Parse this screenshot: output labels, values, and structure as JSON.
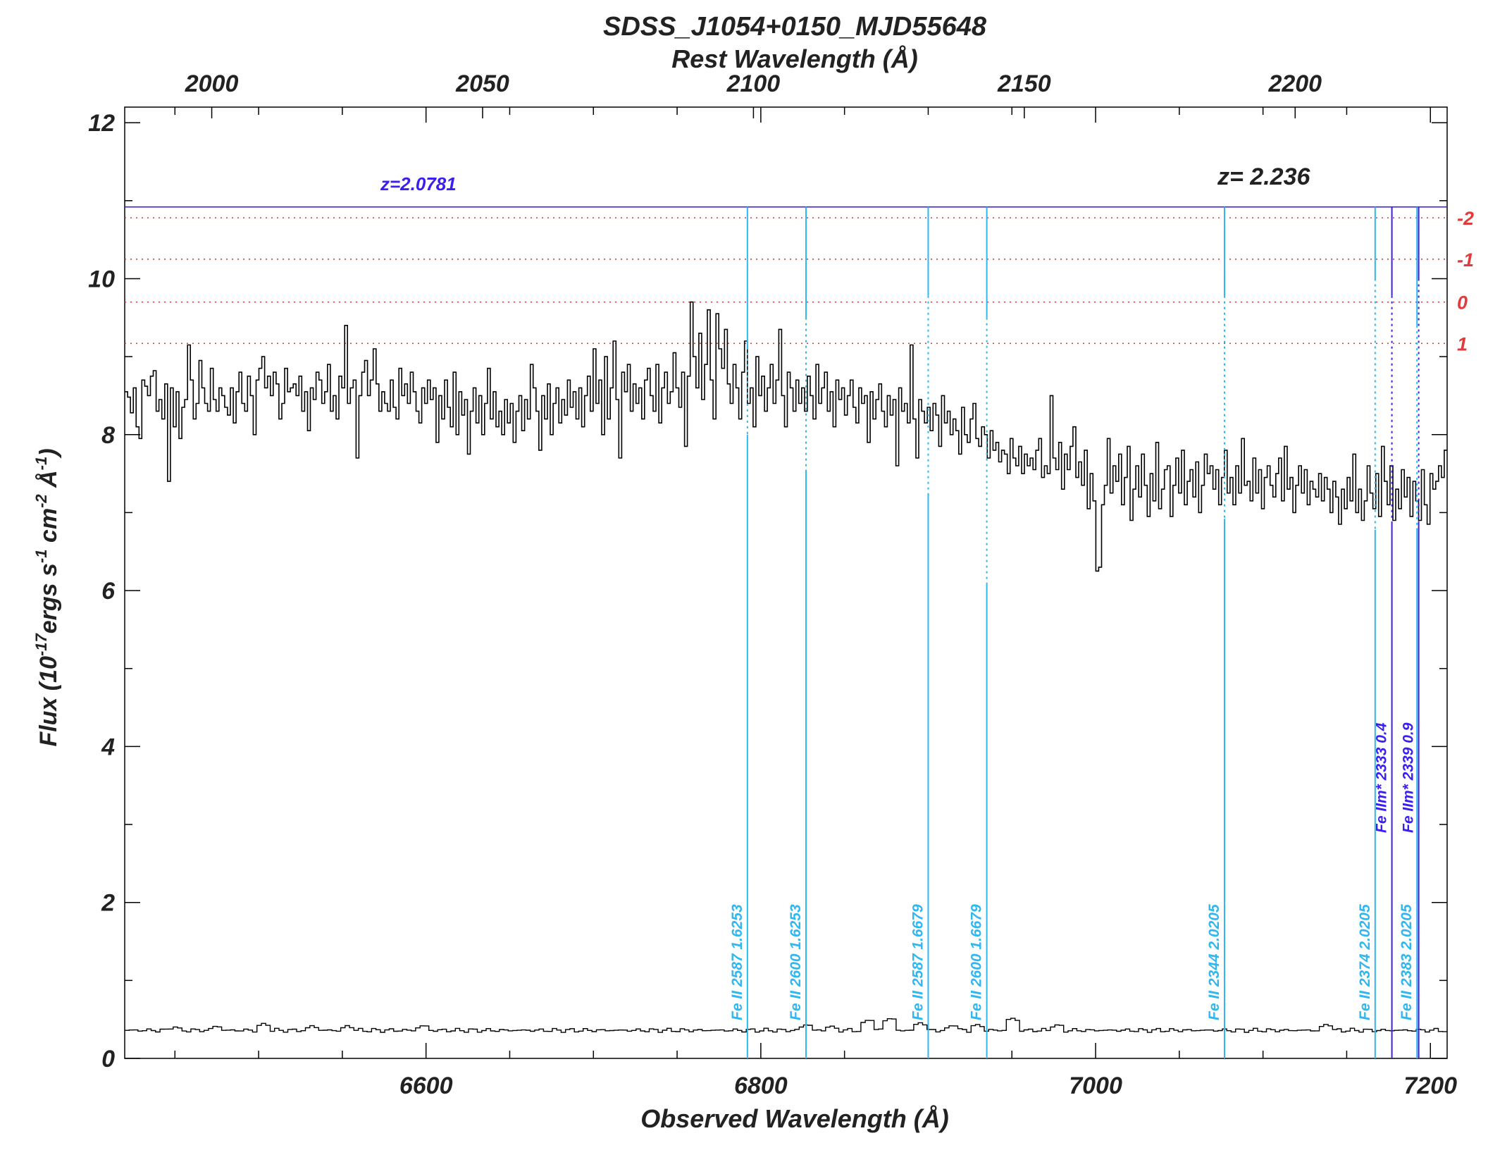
{
  "chart_data": {
    "type": "line",
    "title": "SDSS_J1054+0150_MJD55648",
    "xlabel": "Observed Wavelength (Å)",
    "x2label": "Rest Wavelength (Å)",
    "ylabel_parts": [
      "Flux (10",
      "-17",
      "ergs s",
      "-1",
      " cm",
      "-2",
      " Å",
      "-1",
      ")"
    ],
    "xlim": [
      6420,
      7210
    ],
    "ylim": [
      0,
      12.2
    ],
    "x_ticks": [
      "6600",
      "6800",
      "7000",
      "7200"
    ],
    "y_ticks": [
      "0",
      "2",
      "4",
      "6",
      "8",
      "10",
      "12"
    ],
    "rest_ticks": [
      "2000",
      "2050",
      "2100",
      "2150",
      "2200"
    ],
    "z_emission": 2.236,
    "z_label": "z= 2.236",
    "ref_levels": [
      {
        "label": "-2",
        "flux": 10.78
      },
      {
        "label": "-1",
        "flux": 10.25
      },
      {
        "label": "0",
        "flux": 9.7
      },
      {
        "label": "1",
        "flux": 9.17
      }
    ],
    "absorber": {
      "label": "z=2.0781",
      "flux": 10.92,
      "color": "#3a1ff0"
    },
    "flux_series": {
      "name": "flux",
      "x_start": 6420,
      "x_end": 7210,
      "values": [
        8.55,
        8.48,
        8.28,
        8.6,
        8.1,
        7.95,
        8.7,
        8.62,
        8.5,
        8.75,
        8.82,
        8.3,
        8.45,
        8.2,
        8.65,
        7.4,
        8.6,
        8.1,
        8.55,
        7.95,
        8.35,
        8.45,
        9.15,
        8.7,
        8.2,
        8.4,
        8.95,
        8.6,
        8.4,
        8.3,
        8.85,
        8.45,
        8.3,
        8.6,
        8.5,
        8.35,
        8.25,
        8.6,
        8.15,
        8.55,
        8.8,
        8.4,
        8.3,
        8.75,
        8.5,
        8.0,
        8.7,
        8.85,
        9.0,
        8.6,
        8.75,
        8.5,
        8.8,
        8.65,
        8.2,
        8.4,
        8.85,
        8.55,
        8.6,
        8.65,
        8.5,
        8.75,
        8.3,
        8.55,
        8.05,
        8.6,
        8.45,
        8.8,
        8.7,
        8.4,
        8.55,
        8.9,
        8.3,
        8.5,
        8.2,
        8.75,
        8.6,
        9.4,
        8.4,
        8.6,
        8.7,
        7.7,
        8.5,
        8.8,
        8.95,
        8.5,
        8.7,
        9.1,
        8.65,
        8.3,
        8.55,
        8.4,
        8.3,
        8.7,
        8.35,
        8.2,
        8.85,
        8.5,
        8.65,
        8.4,
        8.8,
        8.55,
        8.3,
        8.15,
        8.6,
        8.4,
        8.7,
        8.45,
        8.6,
        7.9,
        8.5,
        8.2,
        8.7,
        8.35,
        8.1,
        8.8,
        8.0,
        8.55,
        8.25,
        8.45,
        7.75,
        8.3,
        8.6,
        8.15,
        8.5,
        8.0,
        8.4,
        8.85,
        8.2,
        8.55,
        8.1,
        8.3,
        8.0,
        8.45,
        8.15,
        8.4,
        7.9,
        8.3,
        8.5,
        8.05,
        8.45,
        8.2,
        8.9,
        8.6,
        8.3,
        7.8,
        8.5,
        8.2,
        8.65,
        8.0,
        8.4,
        8.6,
        8.15,
        8.45,
        8.25,
        8.7,
        8.35,
        8.55,
        8.2,
        8.6,
        8.1,
        8.5,
        8.75,
        8.3,
        9.1,
        8.4,
        8.7,
        8.0,
        9.0,
        8.2,
        8.6,
        9.2,
        8.45,
        7.7,
        8.8,
        8.55,
        8.9,
        8.3,
        8.65,
        8.4,
        8.6,
        8.2,
        8.7,
        8.85,
        8.5,
        8.3,
        8.9,
        8.15,
        8.6,
        8.8,
        8.4,
        8.55,
        9.05,
        8.6,
        8.35,
        8.8,
        7.85,
        8.75,
        9.7,
        9.0,
        8.6,
        9.3,
        8.45,
        8.9,
        9.6,
        8.7,
        8.2,
        9.55,
        9.1,
        8.85,
        9.35,
        8.65,
        8.4,
        8.9,
        8.6,
        8.2,
        8.8,
        9.2,
        8.4,
        8.6,
        8.1,
        9.0,
        8.5,
        8.75,
        8.3,
        8.6,
        8.9,
        8.4,
        8.7,
        9.35,
        8.5,
        8.1,
        8.8,
        8.6,
        8.3,
        8.7,
        8.4,
        8.6,
        8.3,
        8.75,
        8.5,
        8.2,
        8.9,
        8.4,
        8.6,
        8.8,
        8.3,
        8.55,
        8.1,
        8.7,
        8.45,
        8.6,
        8.25,
        8.5,
        8.7,
        8.35,
        8.15,
        8.6,
        8.4,
        8.5,
        7.9,
        8.55,
        8.2,
        8.45,
        8.65,
        8.3,
        8.1,
        8.5,
        8.25,
        8.45,
        7.6,
        8.6,
        8.3,
        8.4,
        8.15,
        9.15,
        8.2,
        7.7,
        8.45,
        8.3,
        8.15,
        8.35,
        8.05,
        8.4,
        8.25,
        7.85,
        8.5,
        8.15,
        8.3,
        8.0,
        8.2,
        8.05,
        7.75,
        8.35,
        8.0,
        7.9,
        8.2,
        8.4,
        7.95,
        7.85,
        8.1,
        8.0,
        7.7,
        8.05,
        7.8,
        7.9,
        7.65,
        7.8,
        7.75,
        7.5,
        7.95,
        7.7,
        7.6,
        7.85,
        7.5,
        7.75,
        7.6,
        7.7,
        7.55,
        7.8,
        7.95,
        7.45,
        7.6,
        7.5,
        8.5,
        7.7,
        7.55,
        7.9,
        7.3,
        7.75,
        7.55,
        7.85,
        8.1,
        7.45,
        7.65,
        7.35,
        7.8,
        7.05,
        7.5,
        7.15,
        6.25,
        6.3,
        7.1,
        7.35,
        7.95,
        7.25,
        7.6,
        7.4,
        7.75,
        7.1,
        7.45,
        7.85,
        6.9,
        7.3,
        7.6,
        7.2,
        7.75,
        7.35,
        6.95,
        7.5,
        7.15,
        7.9,
        7.05,
        7.3,
        7.55,
        7.6,
        6.95,
        7.35,
        7.7,
        7.25,
        7.8,
        7.1,
        7.4,
        7.55,
        7.2,
        7.65,
        7.0,
        7.35,
        7.75,
        7.5,
        7.6,
        7.3,
        7.55,
        7.1,
        7.45,
        7.8,
        7.25,
        7.45,
        7.1,
        7.6,
        7.25,
        7.95,
        7.35,
        7.4,
        7.15,
        7.7,
        7.25,
        7.55,
        7.05,
        7.45,
        7.6,
        7.35,
        7.2,
        7.5,
        7.7,
        7.15,
        7.85,
        7.3,
        7.45,
        7.0,
        7.35,
        7.6,
        7.25,
        7.55,
        7.1,
        7.4,
        7.3,
        7.2,
        7.5,
        7.15,
        7.45,
        7.3,
        7.0,
        7.4,
        7.2,
        6.85,
        7.3,
        7.05,
        7.45,
        7.15,
        7.75,
        7.0,
        7.3,
        6.9,
        7.15,
        7.6,
        7.25,
        7.05,
        7.5,
        6.95,
        7.85,
        7.4,
        7.1,
        7.6,
        6.9,
        7.3,
        7.05,
        7.55,
        7.2,
        7.45,
        6.95,
        7.4,
        7.15,
        6.9,
        7.55,
        7.1,
        6.85,
        7.5,
        7.3,
        7.4,
        7.6,
        7.45,
        7.8
      ]
    },
    "error_series": {
      "name": "error",
      "x_start": 6420,
      "x_end": 7210,
      "base": 0.36,
      "bumps": [
        [
          6451,
          0.41
        ],
        [
          6475,
          0.42
        ],
        [
          6503,
          0.45
        ],
        [
          6532,
          0.42
        ],
        [
          6553,
          0.42
        ],
        [
          6599,
          0.43
        ],
        [
          6828,
          0.44
        ],
        [
          6842,
          0.42
        ],
        [
          6865,
          0.5
        ],
        [
          6878,
          0.52
        ],
        [
          6895,
          0.46
        ],
        [
          6915,
          0.43
        ],
        [
          6929,
          0.44
        ],
        [
          6950,
          0.52
        ],
        [
          6978,
          0.44
        ],
        [
          7138,
          0.44
        ]
      ]
    },
    "lines": [
      {
        "label": "Fe II 2587 1.6253",
        "x": 6792,
        "color": "#30b7f0",
        "top": 10.92,
        "bottom_dash": 9.12,
        "solid_below": 8.0
      },
      {
        "label": "Fe II 2600 1.6253",
        "x": 6827,
        "color": "#30b7f0",
        "top": 10.92,
        "bottom_dash": 9.5,
        "solid_below": 7.55
      },
      {
        "label": "Fe II 2587 1.6679",
        "x": 6900,
        "color": "#30b7f0",
        "top": 10.92,
        "bottom_dash": 9.78,
        "solid_below": 7.25
      },
      {
        "label": "Fe II 2600 1.6679",
        "x": 6935,
        "color": "#30b7f0",
        "top": 10.92,
        "bottom_dash": 9.5,
        "solid_below": 6.1
      },
      {
        "label": "Fe II 2344 2.0205",
        "x": 7077,
        "color": "#30b7f0",
        "top": 10.92,
        "bottom_dash": 9.78,
        "solid_below": 6.92
      },
      {
        "label": "Fe II 2374 2.0205",
        "x": 7167,
        "color": "#30b7f0",
        "top": 10.92,
        "bottom_dash": 10.0,
        "solid_below": 6.78
      },
      {
        "label": "Fe IIm* 2333 0.4",
        "x": 7177,
        "color": "#3a1ff0",
        "top": 10.92,
        "bottom_dash": 9.78,
        "solid_below": 6.88
      },
      {
        "label": "Fe II 2383 2.0205",
        "x": 7192,
        "color": "#30b7f0",
        "top": 10.92,
        "bottom_dash": 9.4,
        "solid_below": 6.8
      },
      {
        "label": "Fe IIm* 2339 0.9",
        "x": 7193,
        "color": "#3a1ff0",
        "top": 10.92,
        "bottom_dash": 10.0,
        "solid_below": 6.88
      }
    ],
    "grid": false,
    "colors": {
      "data": "#000000",
      "ref_levels": "#e23b3b",
      "absorber": "#3a1ff0",
      "lines_light": "#30b7f0",
      "lines_dark": "#3a1ff0"
    }
  }
}
